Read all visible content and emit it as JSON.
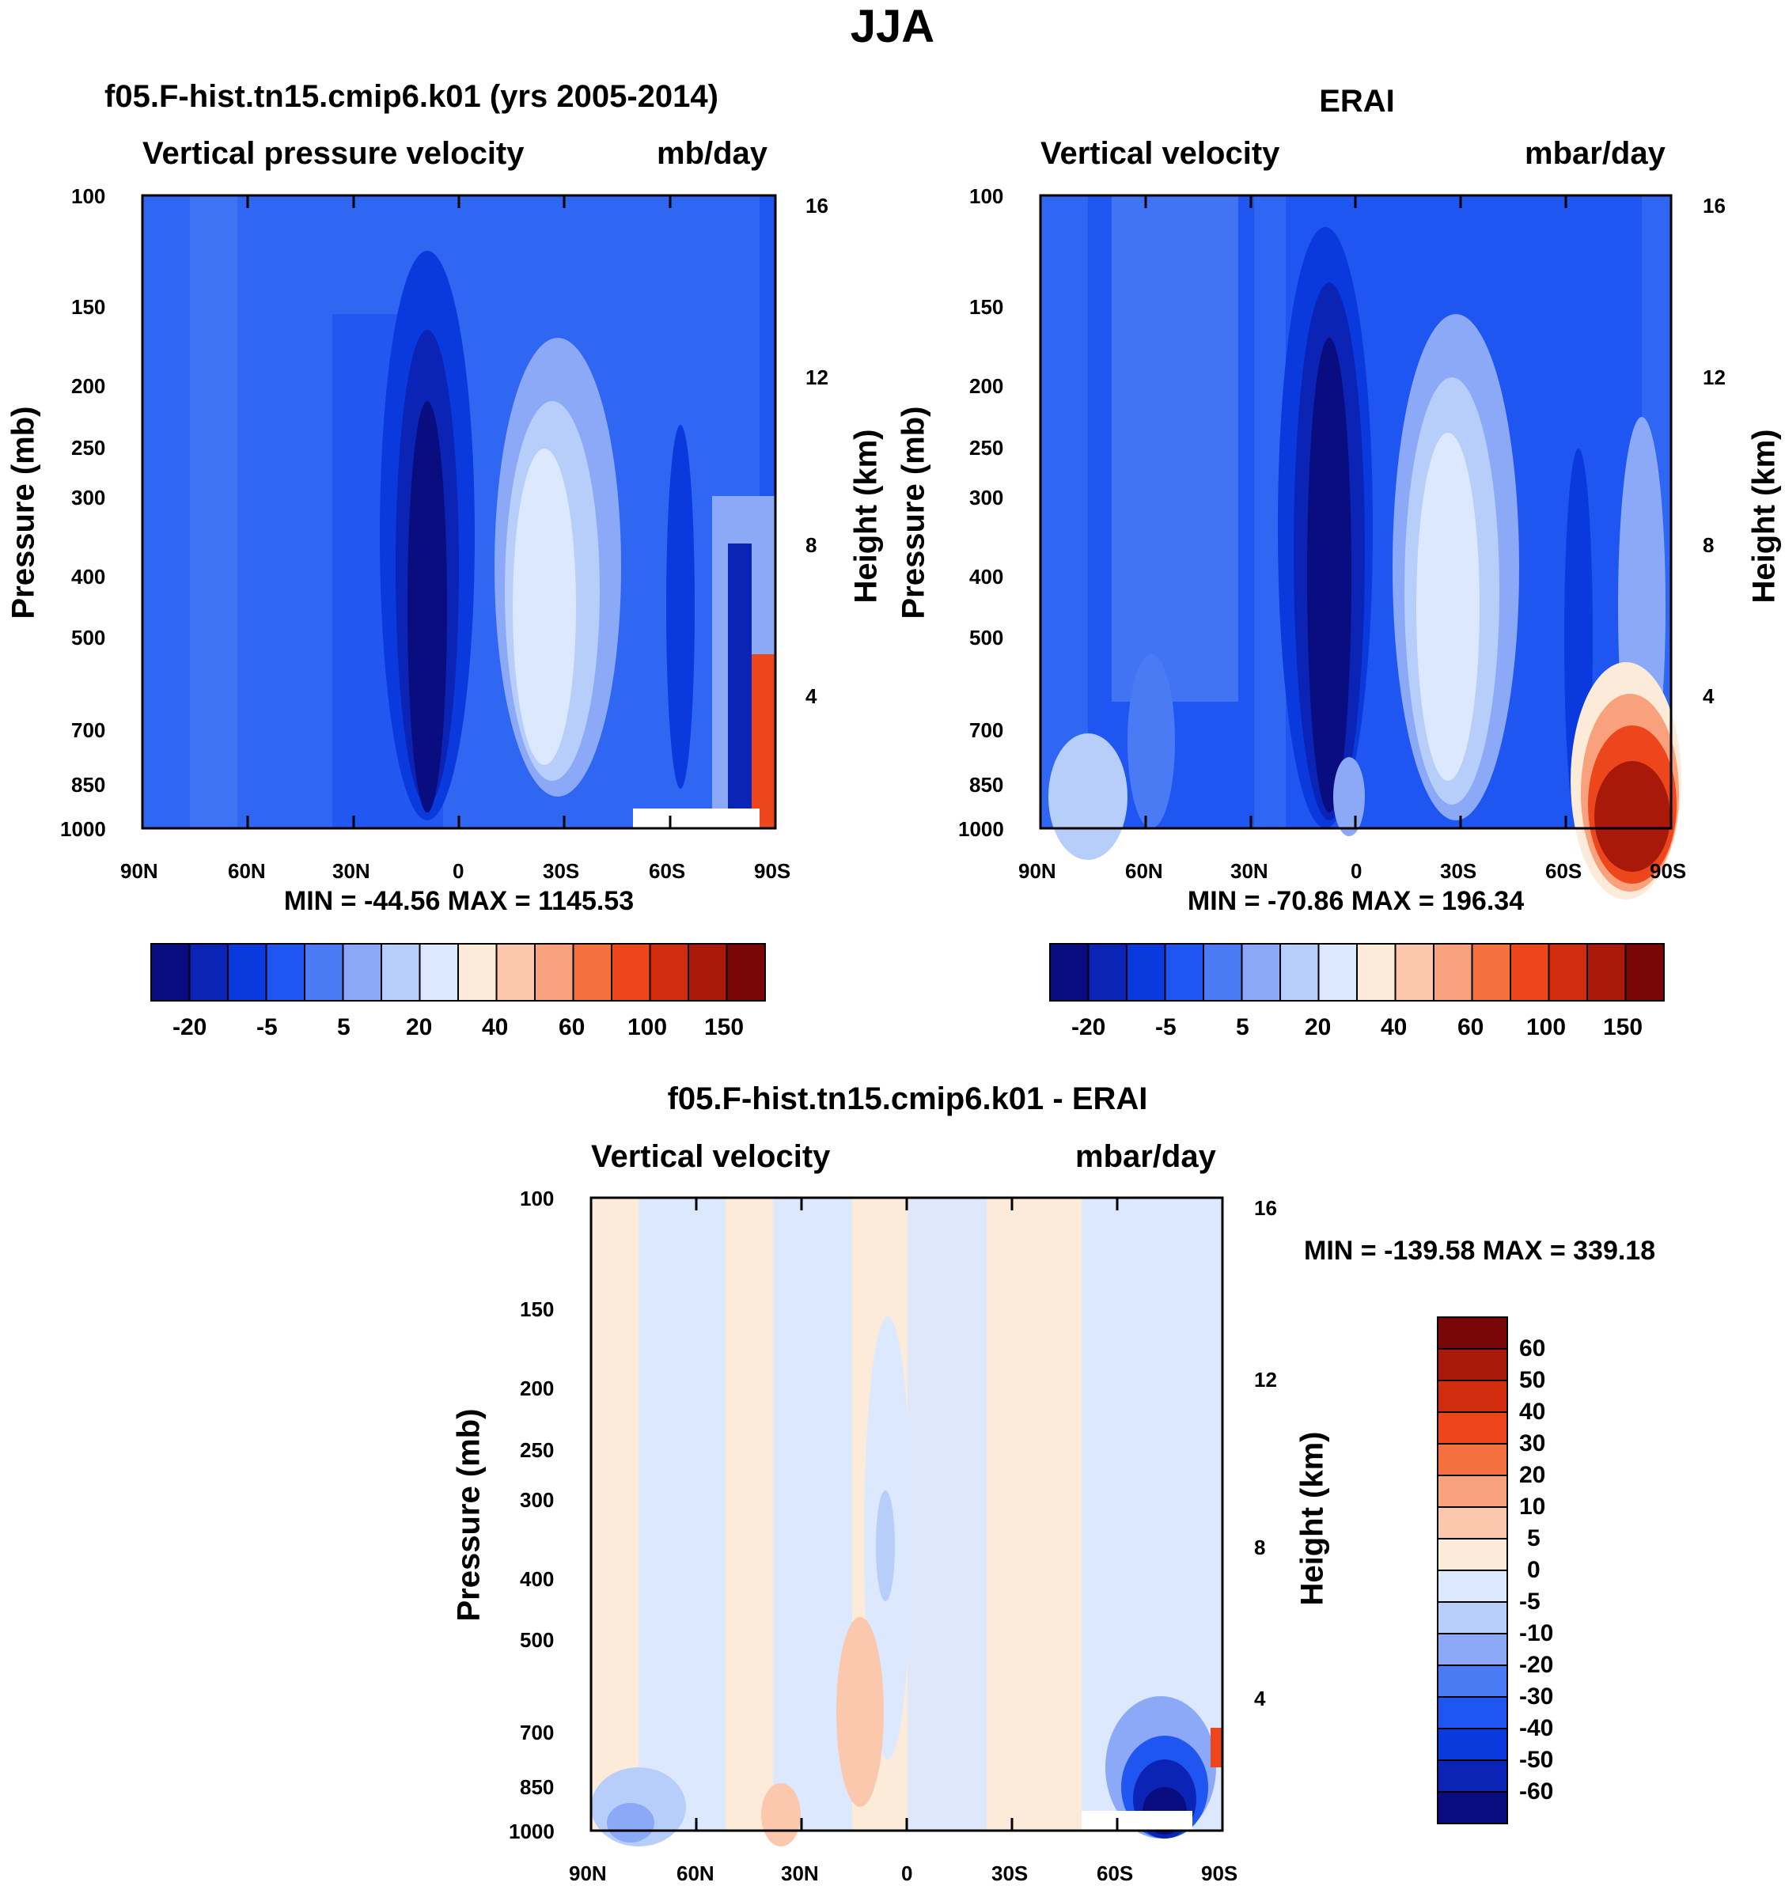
{
  "figure": {
    "title": "JJA"
  },
  "panels": [
    {
      "title": "f05.F-hist.tn15.cmip6.k01 (yrs 2005-2014)",
      "left_label": "Vertical pressure velocity",
      "right_label": "mb/day",
      "ylabel": "Pressure (mb)",
      "ylabel_right": "Height (km)",
      "stats": "MIN = -44.56   MAX = 1145.53"
    },
    {
      "title": "ERAI",
      "left_label": "Vertical velocity",
      "right_label": "mbar/day",
      "ylabel": "Pressure (mb)",
      "ylabel_right": "Height (km)",
      "stats": "MIN = -70.86   MAX = 196.34"
    },
    {
      "title": "f05.F-hist.tn15.cmip6.k01 - ERAI",
      "left_label": "Vertical velocity",
      "right_label": "mbar/day",
      "ylabel": "Pressure (mb)",
      "ylabel_right": "Height (km)",
      "stats": "MIN = -139.58   MAX = 339.18"
    }
  ],
  "axes": {
    "x_ticks": [
      "90N",
      "60N",
      "30N",
      "0",
      "30S",
      "60S",
      "90S"
    ],
    "y_ticks": [
      "100",
      "150",
      "200",
      "250",
      "300",
      "400",
      "500",
      "700",
      "850",
      "1000"
    ],
    "height_ticks": [
      "16",
      "12",
      "8",
      "4"
    ]
  },
  "colorbars": {
    "top_labels": [
      "-20",
      "-5",
      "5",
      "20",
      "40",
      "60",
      "100",
      "150"
    ],
    "top_colors": [
      "#0a0d80",
      "#0b24b5",
      "#0a39dd",
      "#1f55f0",
      "#4a7bf4",
      "#8ba9f6",
      "#b7cdfa",
      "#dbe8fd",
      "#fdebda",
      "#fbc8ad",
      "#f9a07c",
      "#f5703f",
      "#ee461c",
      "#d22c0e",
      "#a8190a",
      "#7a0707"
    ],
    "diff_labels": [
      "60",
      "50",
      "40",
      "30",
      "20",
      "10",
      "5",
      "0",
      "-5",
      "-10",
      "-20",
      "-30",
      "-40",
      "-50",
      "-60"
    ],
    "diff_colors": [
      "#7a0707",
      "#a8190a",
      "#d22c0e",
      "#ee461c",
      "#f5703f",
      "#f9a07c",
      "#fbc8ad",
      "#fdebda",
      "#dbe8fd",
      "#b7cdfa",
      "#8ba9f6",
      "#4a7bf4",
      "#1f55f0",
      "#0a39dd",
      "#0b24b5",
      "#0a0d80"
    ]
  },
  "chart_data": [
    {
      "type": "heatmap",
      "title": "f05.F-hist.tn15.cmip6.k01 (yrs 2005-2014)",
      "variable": "Vertical pressure velocity",
      "units": "mb/day",
      "x_range": [
        "90N",
        "90S"
      ],
      "y_range_mb": [
        100,
        1000
      ],
      "y_scale": "log",
      "min": -44.56,
      "max": 1145.53,
      "colorbar_levels": [
        -20,
        -5,
        5,
        20,
        40,
        60,
        100,
        150
      ]
    },
    {
      "type": "heatmap",
      "title": "ERAI",
      "variable": "Vertical velocity",
      "units": "mbar/day",
      "x_range": [
        "90N",
        "90S"
      ],
      "y_range_mb": [
        100,
        1000
      ],
      "y_scale": "log",
      "min": -70.86,
      "max": 196.34,
      "colorbar_levels": [
        -20,
        -5,
        5,
        20,
        40,
        60,
        100,
        150
      ]
    },
    {
      "type": "heatmap",
      "title": "f05.F-hist.tn15.cmip6.k01 - ERAI",
      "variable": "Vertical velocity",
      "units": "mbar/day",
      "x_range": [
        "90N",
        "90S"
      ],
      "y_range_mb": [
        100,
        1000
      ],
      "y_scale": "log",
      "min": -139.58,
      "max": 339.18,
      "colorbar_levels": [
        -60,
        -50,
        -40,
        -30,
        -20,
        -10,
        -5,
        0,
        5,
        10,
        20,
        30,
        40,
        50,
        60
      ]
    }
  ]
}
